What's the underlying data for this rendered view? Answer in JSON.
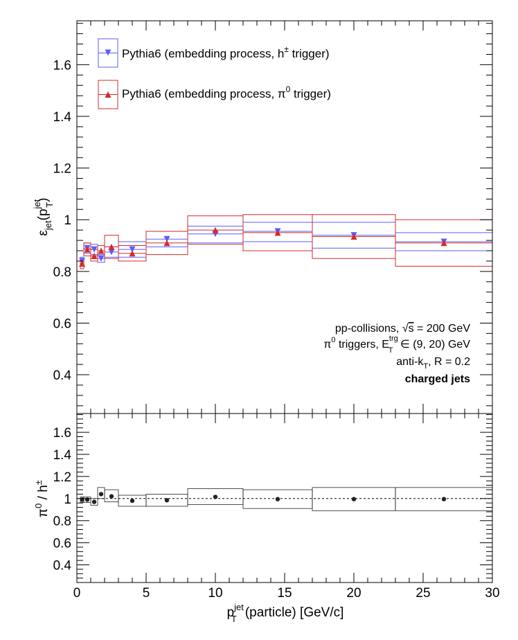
{
  "chart_data": [
    {
      "type": "scatter",
      "panel": "top",
      "ylabel": {
        "base": "ε",
        "sub": "jet",
        "open": "(p",
        "sup2": "jet",
        "sub2": "T",
        "close": ")"
      },
      "xlim": [
        0,
        30
      ],
      "ylim": [
        0.25,
        1.77
      ],
      "y_ticks": [
        "0.4",
        "0.6",
        "0.8",
        "1",
        "1.2",
        "1.4",
        "1.6"
      ],
      "y_tick_values": [
        0.4,
        0.6,
        0.8,
        1.0,
        1.2,
        1.4,
        1.6
      ],
      "legend_placement": "top-left",
      "legend": [
        {
          "prefix": "Pythia6 (embedding process, h",
          "sup": "±",
          "suffix": " trigger)",
          "color": "#5b5bff",
          "marker": "triangle-down"
        },
        {
          "prefix": "Pythia6 (embedding process, π",
          "sup": "0",
          "suffix": " trigger)",
          "color": "#d42a2a",
          "marker": "triangle-up"
        }
      ],
      "series": [
        {
          "name": "Pythia6 (embedding process, h± trigger)",
          "color": "#5b5bff",
          "marker": "triangle-down",
          "points": [
            {
              "x": 0.38,
              "y": 0.84,
              "xlo": 0.25,
              "xhi": 0.5,
              "slo": 0.82,
              "shi": 0.855
            },
            {
              "x": 0.75,
              "y": 0.89,
              "xlo": 0.5,
              "xhi": 1.0,
              "slo": 0.87,
              "shi": 0.91
            },
            {
              "x": 1.25,
              "y": 0.885,
              "xlo": 1.0,
              "xhi": 1.5,
              "slo": 0.865,
              "shi": 0.905
            },
            {
              "x": 1.75,
              "y": 0.85,
              "xlo": 1.5,
              "xhi": 2.0,
              "slo": 0.835,
              "shi": 0.865
            },
            {
              "x": 2.5,
              "y": 0.875,
              "xlo": 2.0,
              "xhi": 3.0,
              "slo": 0.855,
              "shi": 0.895
            },
            {
              "x": 4.0,
              "y": 0.885,
              "xlo": 3.0,
              "xhi": 5.0,
              "slo": 0.855,
              "shi": 0.915
            },
            {
              "x": 6.5,
              "y": 0.925,
              "xlo": 5.0,
              "xhi": 8.0,
              "slo": 0.895,
              "shi": 0.955
            },
            {
              "x": 10.0,
              "y": 0.945,
              "xlo": 8.0,
              "xhi": 12.0,
              "slo": 0.91,
              "shi": 0.975
            },
            {
              "x": 14.5,
              "y": 0.955,
              "xlo": 12.0,
              "xhi": 17.0,
              "slo": 0.915,
              "shi": 0.99
            },
            {
              "x": 20.0,
              "y": 0.94,
              "xlo": 17.0,
              "xhi": 23.0,
              "slo": 0.89,
              "shi": 0.99
            },
            {
              "x": 26.5,
              "y": 0.915,
              "xlo": 23.0,
              "xhi": 30.0,
              "slo": 0.88,
              "shi": 0.95
            }
          ]
        },
        {
          "name": "Pythia6 (embedding process, π0 trigger)",
          "color": "#d42a2a",
          "marker": "triangle-up",
          "points": [
            {
              "x": 0.38,
              "y": 0.83,
              "xlo": 0.25,
              "xhi": 0.5,
              "slo": 0.81,
              "shi": 0.85
            },
            {
              "x": 0.75,
              "y": 0.885,
              "xlo": 0.5,
              "xhi": 1.0,
              "slo": 0.86,
              "shi": 0.91
            },
            {
              "x": 1.25,
              "y": 0.86,
              "xlo": 1.0,
              "xhi": 1.5,
              "slo": 0.84,
              "shi": 0.885
            },
            {
              "x": 1.75,
              "y": 0.88,
              "xlo": 1.5,
              "xhi": 2.0,
              "slo": 0.86,
              "shi": 0.9
            },
            {
              "x": 2.5,
              "y": 0.895,
              "xlo": 2.0,
              "xhi": 3.0,
              "slo": 0.85,
              "shi": 0.94
            },
            {
              "x": 4.0,
              "y": 0.87,
              "xlo": 3.0,
              "xhi": 5.0,
              "slo": 0.84,
              "shi": 0.9
            },
            {
              "x": 6.5,
              "y": 0.91,
              "xlo": 5.0,
              "xhi": 8.0,
              "slo": 0.865,
              "shi": 0.955
            },
            {
              "x": 10.0,
              "y": 0.96,
              "xlo": 8.0,
              "xhi": 12.0,
              "slo": 0.905,
              "shi": 1.015
            },
            {
              "x": 14.5,
              "y": 0.95,
              "xlo": 12.0,
              "xhi": 17.0,
              "slo": 0.88,
              "shi": 1.02
            },
            {
              "x": 20.0,
              "y": 0.935,
              "xlo": 17.0,
              "xhi": 23.0,
              "slo": 0.85,
              "shi": 1.02
            },
            {
              "x": 26.5,
              "y": 0.91,
              "xlo": 23.0,
              "xhi": 30.0,
              "slo": 0.82,
              "shi": 1.0
            }
          ]
        }
      ],
      "annotations": {
        "line1_prefix": "pp-collisions, ",
        "sqrt_symbol": "√",
        "sqrt_arg": "s",
        "line1_suffix": " = 200 GeV",
        "line2_prefix": "π",
        "line2_sup": "0",
        "line2_mid": " triggers, E",
        "line2_sup2": "trg",
        "line2_sub2": "T",
        "line2_suffix": " ∈ (9, 20) GeV",
        "line3_prefix": "anti-k",
        "line3_sub": "T",
        "line3_suffix": ", R = 0.2",
        "line4": "charged jets"
      }
    },
    {
      "type": "scatter",
      "panel": "bottom",
      "ylabel": {
        "base": "π",
        "sup": "0",
        "mid": " / h",
        "sup2": "±"
      },
      "xlabel": {
        "base": "p",
        "sup": "jet",
        "sub": "T",
        "suffix": "(particle) [GeV/c]"
      },
      "xlim": [
        0,
        30
      ],
      "ylim": [
        0.24,
        1.77
      ],
      "x_ticks": [
        "0",
        "5",
        "10",
        "15",
        "20",
        "25",
        "30"
      ],
      "x_tick_values": [
        0,
        5,
        10,
        15,
        20,
        25,
        30
      ],
      "y_ticks": [
        "0.4",
        "0.6",
        "0.8",
        "1",
        "1.2",
        "1.4",
        "1.6"
      ],
      "y_tick_values": [
        0.4,
        0.6,
        0.8,
        1.0,
        1.2,
        1.4,
        1.6
      ],
      "reference_line": 1.0,
      "series": [
        {
          "color": "#222222",
          "marker": "circle",
          "points": [
            {
              "x": 0.38,
              "y": 0.99,
              "xlo": 0.25,
              "xhi": 0.5,
              "slo": 0.965,
              "shi": 1.015
            },
            {
              "x": 0.75,
              "y": 0.99,
              "xlo": 0.5,
              "xhi": 1.0,
              "slo": 0.965,
              "shi": 1.015
            },
            {
              "x": 1.25,
              "y": 0.97,
              "xlo": 1.0,
              "xhi": 1.5,
              "slo": 0.94,
              "shi": 1.0
            },
            {
              "x": 1.75,
              "y": 1.04,
              "xlo": 1.5,
              "xhi": 2.0,
              "slo": 1.0,
              "shi": 1.1
            },
            {
              "x": 2.5,
              "y": 1.02,
              "xlo": 2.0,
              "xhi": 3.0,
              "slo": 0.97,
              "shi": 1.08
            },
            {
              "x": 4.0,
              "y": 0.98,
              "xlo": 3.0,
              "xhi": 5.0,
              "slo": 0.93,
              "shi": 1.03
            },
            {
              "x": 6.5,
              "y": 0.985,
              "xlo": 5.0,
              "xhi": 8.0,
              "slo": 0.93,
              "shi": 1.04
            },
            {
              "x": 10.0,
              "y": 1.015,
              "xlo": 8.0,
              "xhi": 12.0,
              "slo": 0.945,
              "shi": 1.09
            },
            {
              "x": 14.5,
              "y": 0.995,
              "xlo": 12.0,
              "xhi": 17.0,
              "slo": 0.91,
              "shi": 1.08
            },
            {
              "x": 20.0,
              "y": 0.995,
              "xlo": 17.0,
              "xhi": 23.0,
              "slo": 0.89,
              "shi": 1.1
            },
            {
              "x": 26.5,
              "y": 0.995,
              "xlo": 23.0,
              "xhi": 30.0,
              "slo": 0.89,
              "shi": 1.1
            }
          ]
        }
      ]
    }
  ]
}
